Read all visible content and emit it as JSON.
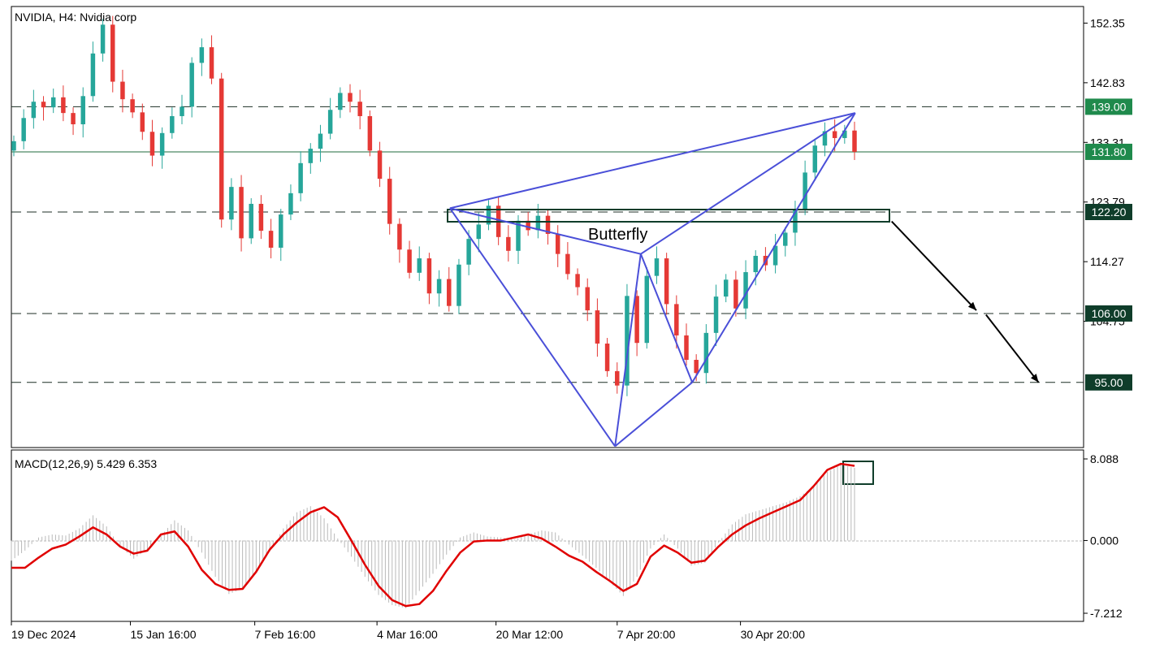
{
  "chart_data": [
    {
      "type": "candlestick",
      "title": "NVIDIA, H4:  Nvidia corp",
      "y_ticks": [
        "152.35",
        "142.83",
        "133.31",
        "123.79",
        "114.27",
        "104.75"
      ],
      "ylim": [
        84.6,
        155.0
      ],
      "x_tick_labels": [
        "19 Dec 2024",
        "15 Jan 16:00",
        "7 Feb 16:00",
        "4 Mar 16:00",
        "20 Mar 12:00",
        "7 Apr 20:00",
        "30 Apr 20:00"
      ],
      "up_color": "#26a69a",
      "down_color": "#e53935",
      "grid": false,
      "closes": [
        133.5,
        137.2,
        139.8,
        138.9,
        140.5,
        138.0,
        136.2,
        140.7,
        147.5,
        152.1,
        143.0,
        140.2,
        138.1,
        135.0,
        131.2,
        134.8,
        137.5,
        139.0,
        146.0,
        148.5,
        143.5,
        121.0,
        126.2,
        118.0,
        123.5,
        119.2,
        116.5,
        121.8,
        125.2,
        130.0,
        132.3,
        134.7,
        138.5,
        141.2,
        139.8,
        137.5,
        132.0,
        127.5,
        120.3,
        116.2,
        112.5,
        114.8,
        109.2,
        111.5,
        107.2,
        113.8,
        117.9,
        120.2,
        123.2,
        118.2,
        116.0,
        120.8,
        119.3,
        121.6,
        118.7,
        115.5,
        112.3,
        110.2,
        106.5,
        101.2,
        96.8,
        94.5,
        108.8,
        101.3,
        112.0,
        114.8,
        107.5,
        102.5,
        98.6,
        96.5,
        102.9,
        108.7,
        111.4,
        106.8,
        112.6,
        115.2,
        113.7,
        116.8,
        118.9,
        122.6,
        128.5,
        132.8,
        135.1,
        134.0,
        135.2,
        131.8
      ],
      "levels": [
        {
          "value": 139.0,
          "label": "139.00",
          "style": "dashed",
          "badge_color": "#1f8a4c"
        },
        {
          "value": 131.8,
          "label": "131.80",
          "style": "solid",
          "badge_color": "#1f8a4c"
        },
        {
          "value": 122.2,
          "label": "122.20",
          "style": "dashed",
          "badge_color": "#0f3d2a"
        },
        {
          "value": 106.0,
          "label": "106.00",
          "style": "dashed",
          "badge_color": "#0f3d2a"
        },
        {
          "value": 95.0,
          "label": "95.00",
          "style": "dashed",
          "badge_color": "#0f3d2a"
        }
      ],
      "pattern": {
        "name": "Butterfly",
        "color": "#4a4fd8",
        "points": [
          [
            0.409,
            122.8
          ],
          [
            0.563,
            84.8
          ],
          [
            0.587,
            115.5
          ],
          [
            0.635,
            95.0
          ],
          [
            0.787,
            138.0
          ]
        ]
      },
      "projection": {
        "color": "#000000",
        "points": [
          [
            0.821,
            120.7
          ],
          [
            0.9,
            106.5
          ],
          [
            0.909,
            105.8
          ],
          [
            0.958,
            95.0
          ]
        ]
      }
    },
    {
      "type": "macd",
      "title": "MACD(12,26,9) 5.429 6.353",
      "y_ticks": [
        "8.088",
        "0.000",
        "-7.212"
      ],
      "ylim": [
        -7.212,
        8.088
      ],
      "line_color": "#e00000",
      "histogram_color": "#b9b9b9",
      "histogram": [
        -2.0,
        -1.0,
        0.3,
        0.6,
        0.5,
        1.2,
        2.5,
        1.4,
        -0.6,
        -1.8,
        -0.9,
        0.5,
        2.0,
        1.0,
        -1.2,
        -3.6,
        -5.3,
        -4.8,
        -3.2,
        -1.1,
        1.2,
        2.8,
        3.4,
        2.2,
        0.2,
        -1.6,
        -3.6,
        -5.4,
        -6.4,
        -6.7,
        -5.0,
        -3.3,
        -1.4,
        0.3,
        0.8,
        0.4,
        0.3,
        0.1,
        0.6,
        1.0,
        0.8,
        -0.4,
        -1.5,
        -2.7,
        -4.1,
        -5.5,
        -3.6,
        -0.8,
        0.6,
        -0.8,
        -2.5,
        -2.2,
        -0.2,
        1.6,
        2.6,
        3.0,
        3.4,
        3.8,
        4.4,
        5.4,
        6.8,
        7.5,
        7.2
      ],
      "signal": [
        -2.7,
        -2.7,
        -1.7,
        -0.8,
        -0.4,
        0.4,
        1.3,
        0.6,
        -0.6,
        -1.3,
        -1.0,
        0.6,
        0.9,
        -0.6,
        -2.9,
        -4.3,
        -4.9,
        -4.8,
        -3.1,
        -0.9,
        0.6,
        1.8,
        2.8,
        3.3,
        2.3,
        0.0,
        -2.4,
        -4.5,
        -5.9,
        -6.5,
        -6.3,
        -5.0,
        -3.0,
        -1.2,
        -0.1,
        0.0,
        0.0,
        0.3,
        0.6,
        0.2,
        -0.6,
        -1.5,
        -2.1,
        -3.1,
        -4.0,
        -5.0,
        -4.3,
        -1.6,
        -0.5,
        -1.2,
        -2.2,
        -2.0,
        -0.6,
        0.6,
        1.5,
        2.2,
        2.8,
        3.4,
        4.0,
        5.4,
        7.0,
        7.6,
        7.4
      ]
    }
  ]
}
